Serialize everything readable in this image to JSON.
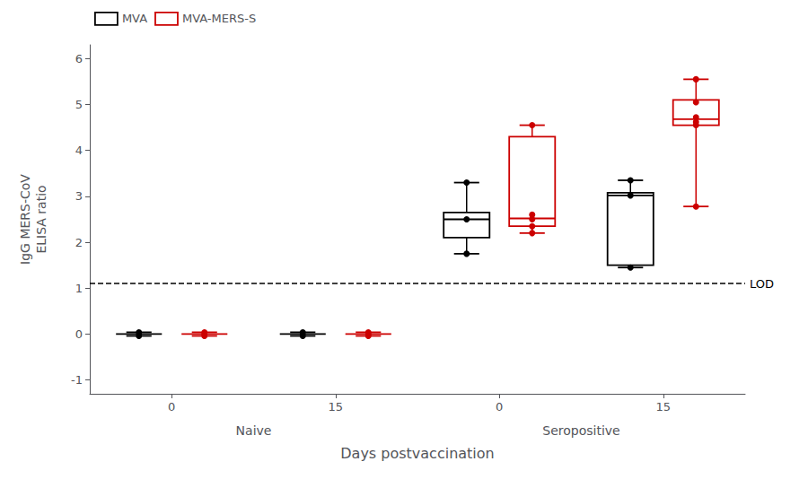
{
  "chart_data": {
    "type": "boxplot",
    "xlabel": "Days postvaccination",
    "ylabel": "IgG MERS-CoV\nELISA ratio",
    "groups": [
      {
        "label": "Naive",
        "categories": [
          "0",
          "15"
        ]
      },
      {
        "label": "Seropositive",
        "categories": [
          "0",
          "15"
        ]
      }
    ],
    "ylim": [
      -1.3,
      6.3
    ],
    "yticks": [
      -1,
      0,
      1,
      2,
      3,
      4,
      5,
      6
    ],
    "grid": false,
    "legend": "upper left",
    "annotations": [
      {
        "type": "hline",
        "y": 1.1,
        "text": "LOD",
        "line_style": "dashed",
        "color": "#000000"
      }
    ],
    "series": [
      {
        "name": "MVA",
        "color": "#000000",
        "marker": "circle",
        "values": [
          {
            "whislo": -0.04,
            "median": 0,
            "whishi": 0.04,
            "points": [
              0.04,
              -0.04
            ]
          },
          {
            "whislo": -0.04,
            "median": 0,
            "whishi": 0.04,
            "points": [
              0.04,
              -0.04
            ]
          },
          {
            "whislo": 1.75,
            "q1": 2.1,
            "median": 2.5,
            "q3": 2.65,
            "whishi": 3.3,
            "points": [
              1.75,
              2.5,
              3.3
            ]
          },
          {
            "whislo": 1.45,
            "q1": 1.5,
            "median": 3.02,
            "q3": 3.08,
            "whishi": 3.35,
            "points": [
              1.45,
              3.02,
              3.35
            ]
          }
        ]
      },
      {
        "name": "MVA-MERS-S",
        "color": "#cc0000",
        "marker": "circle",
        "values": [
          {
            "whislo": -0.04,
            "median": 0,
            "whishi": 0.04,
            "points": [
              0.04,
              0.0,
              -0.04
            ]
          },
          {
            "whislo": -0.04,
            "median": 0,
            "whishi": 0.04,
            "points": [
              0.04,
              0.0,
              -0.04
            ]
          },
          {
            "whislo": 2.2,
            "q1": 2.35,
            "median": 2.52,
            "q3": 4.3,
            "whishi": 4.55,
            "points": [
              2.2,
              2.35,
              2.5,
              2.6,
              4.55
            ]
          },
          {
            "whislo": 2.78,
            "q1": 4.55,
            "median": 4.68,
            "q3": 5.1,
            "whishi": 5.55,
            "points": [
              2.78,
              4.55,
              4.62,
              4.72,
              5.05,
              5.55
            ]
          }
        ]
      }
    ]
  }
}
